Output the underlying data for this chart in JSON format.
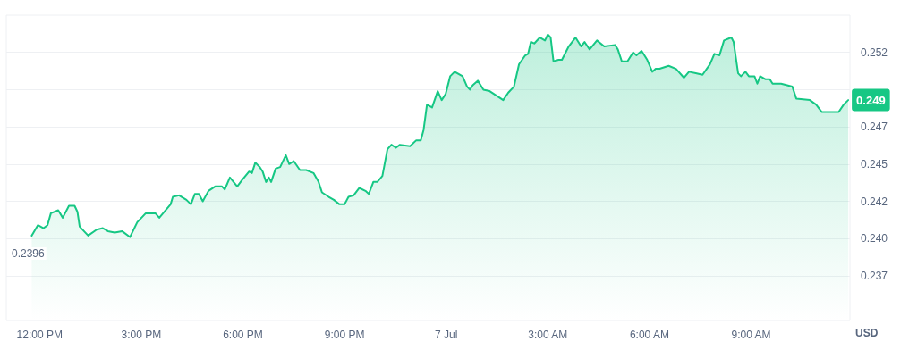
{
  "chart_data": {
    "type": "area",
    "ylabel": "USD",
    "xlim": [
      "--07-06T11:01",
      "--07-07T11:55"
    ],
    "xticks": [
      {
        "value": "--07-06T12:00",
        "label": "12:00 PM"
      },
      {
        "value": "--07-06T15:00",
        "label": "3:00 PM"
      },
      {
        "value": "--07-06T18:00",
        "label": "6:00 PM"
      },
      {
        "value": "--07-06T21:00",
        "label": "9:00 PM"
      },
      {
        "value": "--07-07T00:00",
        "label": "7 Jul"
      },
      {
        "value": "--07-07T03:00",
        "label": "3:00 AM"
      },
      {
        "value": "--07-07T06:00",
        "label": "6:00 AM"
      },
      {
        "value": "--07-07T09:00",
        "label": "9:00 AM"
      }
    ],
    "ylim": [
      0.2345,
      0.255
    ],
    "yticks": [
      {
        "value": 0.2375,
        "label": "0.237"
      },
      {
        "value": 0.24,
        "label": "0.240"
      },
      {
        "value": 0.2425,
        "label": "0.242"
      },
      {
        "value": 0.245,
        "label": "0.245"
      },
      {
        "value": 0.2475,
        "label": "0.247"
      },
      {
        "value": 0.25,
        "label": null
      },
      {
        "value": 0.2525,
        "label": "0.252"
      }
    ],
    "grid": "y",
    "marker": "none",
    "ref_lines": [
      {
        "axis": "y",
        "value": 0.2396,
        "label": "0.2396",
        "color": "#8a93a3",
        "line_style": "dotted"
      }
    ],
    "series": [
      {
        "color": "#16c784",
        "x": [
          "--07-06T11:46",
          "--07-06T11:57",
          "--07-06T12:07",
          "--07-06T12:14",
          "--07-06T12:20",
          "--07-06T12:33",
          "--07-06T12:41",
          "--07-06T12:52",
          "--07-06T13:02",
          "--07-06T13:07",
          "--07-06T13:11",
          "--07-06T13:26",
          "--07-06T13:41",
          "--07-06T13:52",
          "--07-06T14:01",
          "--07-06T14:13",
          "--07-06T14:26",
          "--07-06T14:40",
          "--07-06T14:53",
          "--07-06T15:08",
          "--07-06T15:25",
          "--07-06T15:32",
          "--07-06T15:52",
          "--07-06T15:56",
          "--07-06T16:07",
          "--07-06T16:20",
          "--07-06T16:28",
          "--07-06T16:35",
          "--07-06T16:42",
          "--07-06T16:49",
          "--07-06T16:59",
          "--07-06T17:11",
          "--07-06T17:23",
          "--07-06T17:28",
          "--07-06T17:37",
          "--07-06T17:50",
          "--07-06T17:58",
          "--07-06T18:11",
          "--07-06T18:16",
          "--07-06T18:22",
          "--07-06T18:30",
          "--07-06T18:35",
          "--07-06T18:41",
          "--07-06T18:46",
          "--07-06T18:50",
          "--07-06T18:58",
          "--07-06T19:06",
          "--07-06T19:16",
          "--07-06T19:22",
          "--07-06T19:30",
          "--07-06T19:41",
          "--07-06T19:52",
          "--07-06T20:05",
          "--07-06T20:14",
          "--07-06T20:20",
          "--07-06T20:32",
          "--07-06T20:41",
          "--07-06T20:51",
          "--07-06T21:00",
          "--07-06T21:07",
          "--07-06T21:16",
          "--07-06T21:26",
          "--07-06T21:37",
          "--07-06T21:43",
          "--07-06T21:51",
          "--07-06T21:58",
          "--07-06T22:07",
          "--07-06T22:16",
          "--07-06T22:23",
          "--07-06T22:31",
          "--07-06T22:38",
          "--07-06T22:56",
          "--07-06T23:07",
          "--07-06T23:15",
          "--07-06T23:20",
          "--07-06T23:26",
          "--07-06T23:35",
          "--07-06T23:45",
          "--07-06T23:52",
          "--07-06T23:59",
          "--07-07T00:07",
          "--07-07T00:15",
          "--07-07T00:29",
          "--07-07T00:37",
          "--07-07T00:42",
          "--07-07T00:47",
          "--07-07T00:56",
          "--07-07T01:06",
          "--07-07T01:17",
          "--07-07T01:41",
          "--07-07T01:50",
          "--07-07T02:00",
          "--07-07T02:09",
          "--07-07T02:20",
          "--07-07T02:25",
          "--07-07T02:30",
          "--07-07T02:36",
          "--07-07T02:46",
          "--07-07T02:55",
          "--07-07T03:00",
          "--07-07T03:05",
          "--07-07T03:10",
          "--07-07T03:19",
          "--07-07T03:25",
          "--07-07T03:37",
          "--07-07T03:49",
          "--07-07T03:59",
          "--07-07T04:05",
          "--07-07T04:14",
          "--07-07T04:27",
          "--07-07T04:40",
          "--07-07T04:59",
          "--07-07T05:04",
          "--07-07T05:11",
          "--07-07T05:21",
          "--07-07T05:31",
          "--07-07T05:37",
          "--07-07T05:46",
          "--07-07T05:56",
          "--07-07T06:05",
          "--07-07T06:11",
          "--07-07T06:18",
          "--07-07T06:34",
          "--07-07T06:47",
          "--07-07T07:01",
          "--07-07T07:10",
          "--07-07T07:22",
          "--07-07T07:34",
          "--07-07T07:47",
          "--07-07T07:55",
          "--07-07T08:04",
          "--07-07T08:12",
          "--07-07T08:25",
          "--07-07T08:29",
          "--07-07T08:37",
          "--07-07T08:42",
          "--07-07T08:50",
          "--07-07T08:56",
          "--07-07T09:06",
          "--07-07T09:11",
          "--07-07T09:16",
          "--07-07T09:25",
          "--07-07T09:33",
          "--07-07T09:38",
          "--07-07T09:53",
          "--07-07T10:13",
          "--07-07T10:20",
          "--07-07T10:44",
          "--07-07T10:55",
          "--07-07T11:05",
          "--07-07T11:19",
          "--07-07T11:27",
          "--07-07T11:35",
          "--07-07T11:44",
          "--07-07T11:52"
        ],
        "values": [
          0.2402,
          0.2409,
          0.2407,
          0.2409,
          0.2417,
          0.2419,
          0.2414,
          0.2422,
          0.2422,
          0.2418,
          0.2408,
          0.2402,
          0.2406,
          0.2407,
          0.2405,
          0.2404,
          0.2405,
          0.2401,
          0.2411,
          0.2417,
          0.2417,
          0.2414,
          0.2423,
          0.2428,
          0.2429,
          0.2426,
          0.2423,
          0.243,
          0.243,
          0.2425,
          0.2432,
          0.2435,
          0.2435,
          0.2433,
          0.2441,
          0.2435,
          0.2439,
          0.2445,
          0.2444,
          0.2451,
          0.2448,
          0.2445,
          0.2438,
          0.2441,
          0.2438,
          0.2447,
          0.2448,
          0.2456,
          0.245,
          0.2452,
          0.2446,
          0.2446,
          0.2444,
          0.2438,
          0.2431,
          0.2428,
          0.2426,
          0.2423,
          0.2423,
          0.2428,
          0.2429,
          0.2434,
          0.2432,
          0.243,
          0.2438,
          0.2438,
          0.2442,
          0.246,
          0.2463,
          0.2461,
          0.2463,
          0.2462,
          0.2466,
          0.2466,
          0.2473,
          0.249,
          0.2488,
          0.2499,
          0.2493,
          0.2497,
          0.2509,
          0.2512,
          0.2509,
          0.2502,
          0.25,
          0.2503,
          0.2506,
          0.25,
          0.2499,
          0.2493,
          0.2498,
          0.2502,
          0.2517,
          0.2523,
          0.2524,
          0.2532,
          0.2531,
          0.2535,
          0.2533,
          0.2537,
          0.2535,
          0.2519,
          0.252,
          0.252,
          0.2529,
          0.2535,
          0.2529,
          0.2532,
          0.2527,
          0.2533,
          0.2529,
          0.253,
          0.2527,
          0.2519,
          0.2519,
          0.2525,
          0.2523,
          0.2526,
          0.252,
          0.2512,
          0.2514,
          0.2514,
          0.2516,
          0.2514,
          0.2508,
          0.2512,
          0.2511,
          0.251,
          0.2517,
          0.2524,
          0.2523,
          0.2533,
          0.2535,
          0.2532,
          0.2511,
          0.2509,
          0.2512,
          0.2509,
          0.2509,
          0.2504,
          0.2509,
          0.2507,
          0.2507,
          0.2504,
          0.2504,
          0.2502,
          0.2494,
          0.2493,
          0.249,
          0.2485,
          0.2485,
          0.2485,
          0.2485,
          0.249,
          0.2493
        ],
        "value_labels": [
          null,
          null,
          null,
          null,
          null,
          null,
          null,
          null,
          null,
          null,
          null,
          null,
          null,
          null,
          null,
          null,
          null,
          null,
          null,
          null,
          null,
          null,
          null,
          null,
          null,
          null,
          null,
          null,
          null,
          null,
          null,
          null,
          null,
          null,
          null,
          null,
          null,
          null,
          null,
          null,
          null,
          null,
          null,
          null,
          null,
          null,
          null,
          null,
          null,
          null,
          null,
          null,
          null,
          null,
          null,
          null,
          null,
          null,
          null,
          null,
          null,
          null,
          null,
          null,
          null,
          null,
          null,
          null,
          null,
          null,
          null,
          null,
          null,
          null,
          null,
          null,
          null,
          null,
          null,
          null,
          null,
          null,
          null,
          null,
          null,
          null,
          null,
          null,
          null,
          null,
          null,
          null,
          null,
          null,
          null,
          null,
          null,
          null,
          null,
          null,
          null,
          null,
          null,
          null,
          null,
          null,
          null,
          null,
          null,
          null,
          null,
          null,
          null,
          null,
          null,
          null,
          null,
          null,
          null,
          null,
          null,
          null,
          null,
          null,
          null,
          null,
          null,
          null,
          null,
          null,
          null,
          null,
          null,
          null,
          null,
          null,
          null,
          null,
          null,
          null,
          null,
          null,
          null,
          null,
          null,
          null,
          null,
          null,
          null,
          null,
          null,
          null,
          null,
          null,
          "0.249"
        ]
      }
    ]
  }
}
